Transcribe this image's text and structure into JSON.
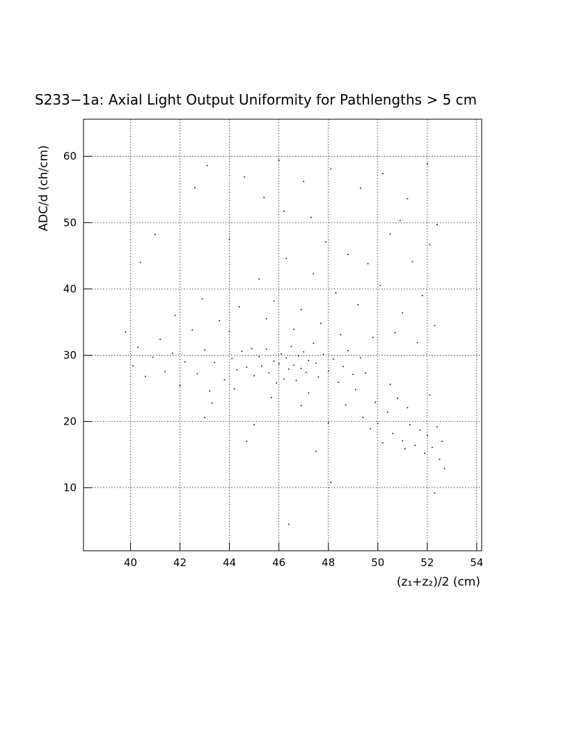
{
  "chart_data": {
    "type": "scatter",
    "title": "S233−1a: Axial Light Output Uniformity for Pathlengths > 5 cm",
    "x_label": "(z₁+z₂)/2 (cm)",
    "y_label": "ADC/d (ch/cm)",
    "xlim": [
      38.1,
      54.2
    ],
    "ylim": [
      0.5,
      65.6
    ],
    "xticks": [
      40,
      42,
      44,
      46,
      48,
      50,
      52,
      54
    ],
    "yticks": [
      10,
      20,
      30,
      40,
      50,
      60
    ],
    "grid": true,
    "color": "#000000",
    "x": [
      44.1,
      44.3,
      44.5,
      44.7,
      44.9,
      45.0,
      45.2,
      45.3,
      45.5,
      45.6,
      45.8,
      45.9,
      46.0,
      46.1,
      46.2,
      46.3,
      46.4,
      46.5,
      46.6,
      46.7,
      46.8,
      46.9,
      47.0,
      47.1,
      47.2,
      47.4,
      47.5,
      47.6,
      47.8,
      48.0,
      48.2,
      48.4,
      48.6,
      48.8,
      49.0,
      49.3,
      39.8,
      40.1,
      40.3,
      40.6,
      40.9,
      41.2,
      41.4,
      41.7,
      42.0,
      42.2,
      42.5,
      42.7,
      43.0,
      43.2,
      43.4,
      43.6,
      43.8,
      42.9,
      41.8,
      43.3,
      45.2,
      45.8,
      46.3,
      46.9,
      47.4,
      47.9,
      48.3,
      48.8,
      49.2,
      49.6,
      50.1,
      50.5,
      51.0,
      51.4,
      51.8,
      52.1,
      52.3,
      44.4,
      44.0,
      45.5,
      46.6,
      47.7,
      48.5,
      49.8,
      50.7,
      51.6,
      42.6,
      43.1,
      44.6,
      45.4,
      46.2,
      47.3,
      48.1,
      49.3,
      50.2,
      51.2,
      52.0,
      52.4,
      46.0,
      44.0,
      41.0,
      40.4,
      50.9,
      47.0,
      48.7,
      49.1,
      49.4,
      49.7,
      49.9,
      50.0,
      50.2,
      50.4,
      50.6,
      50.8,
      51.0,
      51.1,
      51.3,
      51.5,
      51.7,
      51.9,
      52.0,
      52.2,
      52.4,
      52.5,
      52.6,
      52.7,
      50.5,
      51.2,
      49.5,
      52.1,
      46.4,
      48.1,
      52.3,
      44.7,
      47.5,
      45.0,
      43.0,
      46.9,
      48.0,
      45.7,
      47.2,
      44.2
    ],
    "y": [
      29.5,
      27.8,
      30.6,
      28.2,
      31.0,
      26.9,
      29.8,
      28.4,
      30.9,
      27.3,
      29.1,
      25.8,
      28.7,
      30.2,
      26.4,
      29.6,
      27.9,
      31.3,
      28.5,
      26.2,
      29.9,
      28.0,
      30.5,
      27.4,
      29.2,
      31.8,
      28.8,
      26.7,
      30.1,
      27.6,
      29.4,
      25.9,
      28.3,
      30.7,
      27.1,
      29.6,
      33.5,
      28.4,
      31.2,
      26.8,
      29.7,
      32.4,
      27.5,
      30.3,
      25.4,
      29.0,
      33.8,
      27.2,
      30.8,
      24.6,
      28.9,
      35.2,
      26.3,
      38.5,
      36.0,
      22.8,
      41.5,
      38.2,
      44.6,
      36.9,
      42.3,
      47.1,
      39.4,
      45.2,
      37.6,
      43.8,
      40.5,
      48.3,
      36.4,
      44.1,
      39.0,
      46.7,
      34.5,
      37.3,
      33.6,
      35.5,
      33.9,
      34.8,
      33.1,
      32.7,
      33.4,
      31.9,
      55.3,
      58.6,
      56.9,
      53.8,
      51.7,
      50.8,
      58.1,
      55.2,
      57.4,
      53.6,
      58.9,
      49.7,
      59.4,
      47.5,
      48.2,
      44.0,
      50.3,
      56.2,
      22.5,
      24.8,
      20.6,
      18.9,
      22.9,
      19.7,
      16.8,
      21.4,
      18.2,
      23.5,
      17.1,
      15.9,
      19.5,
      16.4,
      18.7,
      15.2,
      17.9,
      16.1,
      19.2,
      14.3,
      17.0,
      12.9,
      25.6,
      22.1,
      27.3,
      24.0,
      4.5,
      10.8,
      9.2,
      17.0,
      15.5,
      19.5,
      20.6,
      22.4,
      19.8,
      23.6,
      24.3,
      24.9
    ]
  }
}
